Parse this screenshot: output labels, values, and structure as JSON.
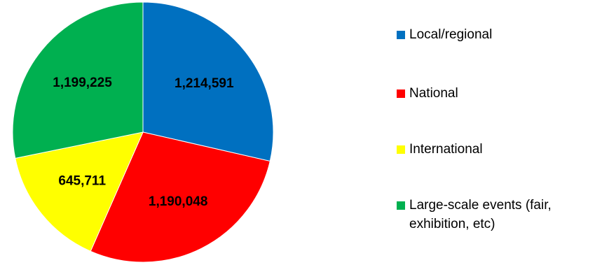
{
  "chart_data": {
    "type": "pie",
    "title": "",
    "categories": [
      "Local/regional",
      "National",
      "International",
      "Large-scale events (fair, exhibition, etc)"
    ],
    "values": [
      1214591,
      1190048,
      645711,
      1199225
    ],
    "value_labels": [
      "1,214,591",
      "1,190,048",
      "645,711",
      "1,199,225"
    ],
    "colors": [
      "#0070C0",
      "#FF0000",
      "#FFFF00",
      "#00B050"
    ],
    "legend_position": "right",
    "start_angle": "12 o'clock",
    "direction": "clockwise"
  }
}
